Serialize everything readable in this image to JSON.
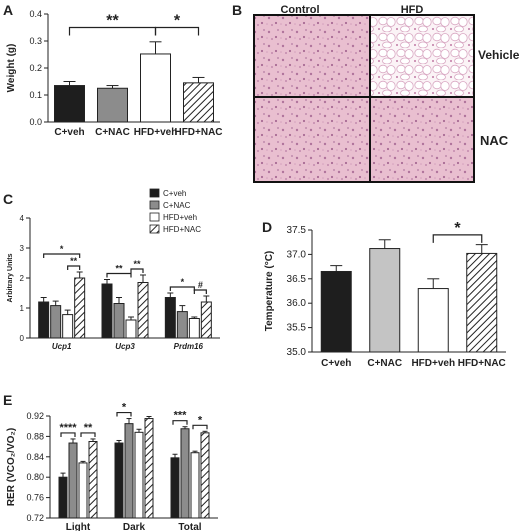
{
  "panels": {
    "A": "A",
    "B": "B",
    "C": "C",
    "D": "D",
    "E": "E"
  },
  "histology": {
    "col_labels": [
      "Control",
      "HFD"
    ],
    "row_labels": [
      "Vehicle",
      "NAC"
    ]
  },
  "colors": {
    "black": "#1e1e1e",
    "gray": "#8c8c8c",
    "lightgray": "#c4c4c4",
    "white": "#ffffff",
    "hatch": "#222222",
    "tissue_pink": "#e7b7c9",
    "tissue_purple": "#c98fb0"
  },
  "chart_data": [
    {
      "panel": "A",
      "type": "bar",
      "categories": [
        "C+veh",
        "C+NAC",
        "HFD+veh",
        "HFD+NAC"
      ],
      "values": [
        0.135,
        0.125,
        0.252,
        0.145
      ],
      "errors": [
        0.015,
        0.01,
        0.045,
        0.02
      ],
      "ylabel": "Weight (g)",
      "ylim": [
        0,
        0.4
      ],
      "yticks": [
        "0.0",
        "0.1",
        "0.2",
        "0.3",
        "0.4"
      ],
      "styles": [
        "black",
        "gray",
        "white",
        "hatch"
      ],
      "significance": [
        {
          "from": 0,
          "to": 2,
          "label": "**"
        },
        {
          "from": 2,
          "to": 3,
          "label": "*"
        }
      ]
    },
    {
      "panel": "C",
      "type": "bar",
      "categories": [
        "Ucp1",
        "Ucp3",
        "Prdm16"
      ],
      "series": [
        {
          "name": "C+veh",
          "values": [
            1.2,
            1.8,
            1.35
          ],
          "errors": [
            0.15,
            0.15,
            0.15
          ]
        },
        {
          "name": "C+NAC",
          "values": [
            1.08,
            1.15,
            0.88
          ],
          "errors": [
            0.15,
            0.2,
            0.2
          ]
        },
        {
          "name": "HFD+veh",
          "values": [
            0.78,
            0.6,
            0.65
          ],
          "errors": [
            0.15,
            0.1,
            0.05
          ]
        },
        {
          "name": "HFD+NAC",
          "values": [
            2.0,
            1.85,
            1.2
          ],
          "errors": [
            0.2,
            0.25,
            0.2
          ]
        }
      ],
      "ylabel": "Arbitrary Units",
      "ylim": [
        0,
        4
      ],
      "yticks": [
        "0",
        "1",
        "2",
        "3",
        "4"
      ],
      "styles": [
        "black",
        "gray",
        "white",
        "hatch"
      ],
      "legend_position": "top-right",
      "significance": [
        {
          "group": 0,
          "from": 0,
          "to": 3,
          "label": "*",
          "level": 2
        },
        {
          "group": 0,
          "from": 2,
          "to": 3,
          "label": "**",
          "level": 1
        },
        {
          "group": 1,
          "from": 0,
          "to": 2,
          "label": "**",
          "level": 1
        },
        {
          "group": 1,
          "from": 2,
          "to": 3,
          "label": "**",
          "level": 1
        },
        {
          "group": 2,
          "from": 0,
          "to": 2,
          "label": "*",
          "level": 1
        },
        {
          "group": 2,
          "from": 2,
          "to": 3,
          "label": "#",
          "level": 1
        }
      ]
    },
    {
      "panel": "D",
      "type": "bar",
      "categories": [
        "C+veh",
        "C+NAC",
        "HFD+veh",
        "HFD+NAC"
      ],
      "values": [
        36.65,
        37.12,
        36.3,
        37.02
      ],
      "errors": [
        0.12,
        0.18,
        0.2,
        0.18
      ],
      "ylabel": "Temperature (°C)",
      "ylim": [
        35.0,
        37.5
      ],
      "yticks": [
        "35.0",
        "35.5",
        "36.0",
        "36.5",
        "37.0",
        "37.5"
      ],
      "styles": [
        "black",
        "lightgray",
        "white",
        "hatch"
      ],
      "significance": [
        {
          "from": 2,
          "to": 3,
          "label": "*"
        }
      ]
    },
    {
      "panel": "E",
      "type": "bar",
      "categories": [
        "Light",
        "Dark",
        "Total"
      ],
      "series": [
        {
          "values": [
            0.8,
            0.867,
            0.838
          ],
          "errors": [
            0.008,
            0.005,
            0.007
          ]
        },
        {
          "values": [
            0.867,
            0.905,
            0.895
          ],
          "errors": [
            0.008,
            0.01,
            0.004
          ]
        },
        {
          "values": [
            0.828,
            0.888,
            0.848
          ],
          "errors": [
            0.003,
            0.006,
            0.003
          ]
        },
        {
          "values": [
            0.87,
            0.915,
            0.887
          ],
          "errors": [
            0.005,
            0.004,
            0.003
          ]
        }
      ],
      "ylabel": "RER (VCO₂/VO₂)",
      "ylim": [
        0.72,
        0.92
      ],
      "yticks": [
        "0.72",
        "0.76",
        "0.80",
        "0.84",
        "0.88",
        "0.92"
      ],
      "styles": [
        "black",
        "gray",
        "white",
        "hatch"
      ],
      "significance": [
        {
          "group": 0,
          "from": 0,
          "to": 1,
          "label": "****"
        },
        {
          "group": 0,
          "from": 2,
          "to": 3,
          "label": "**"
        },
        {
          "group": 1,
          "from": 0,
          "to": 1,
          "label": "*"
        },
        {
          "group": 2,
          "from": 0,
          "to": 1,
          "label": "***"
        },
        {
          "group": 2,
          "from": 2,
          "to": 3,
          "label": "*"
        }
      ]
    }
  ]
}
